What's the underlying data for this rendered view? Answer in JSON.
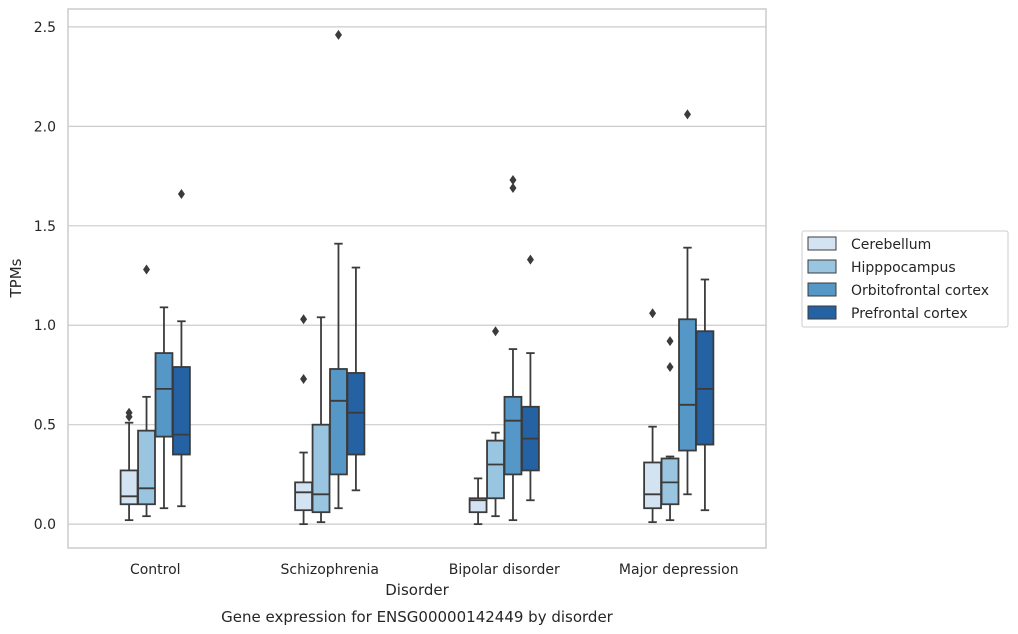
{
  "chart_data": {
    "type": "box",
    "caption": "Gene expression for ENSG00000142449 by disorder",
    "xlabel": "Disorder",
    "ylabel": "TPMs",
    "ylim": [
      -0.12,
      2.59
    ],
    "yticks": [
      0.0,
      0.5,
      1.0,
      1.5,
      2.0,
      2.5
    ],
    "ytick_labels": [
      "0.0",
      "0.5",
      "1.0",
      "1.5",
      "2.0",
      "2.5"
    ],
    "grid": "horizontal",
    "legend_position": "right",
    "categories": [
      "Control",
      "Schizophrenia",
      "Bipolar disorder",
      "Major depression"
    ],
    "series": [
      {
        "name": "Cerebellum",
        "color": "#d4e3f2",
        "boxes": [
          {
            "whislo": 0.02,
            "q1": 0.1,
            "med": 0.14,
            "q3": 0.27,
            "whishi": 0.51,
            "fliers": [
              0.54,
              0.56
            ]
          },
          {
            "whislo": 0.0,
            "q1": 0.07,
            "med": 0.16,
            "q3": 0.21,
            "whishi": 0.36,
            "fliers": [
              0.73,
              1.03
            ]
          },
          {
            "whislo": 0.0,
            "q1": 0.06,
            "med": 0.12,
            "q3": 0.13,
            "whishi": 0.23,
            "fliers": []
          },
          {
            "whislo": 0.01,
            "q1": 0.08,
            "med": 0.15,
            "q3": 0.31,
            "whishi": 0.49,
            "fliers": [
              1.06
            ]
          }
        ]
      },
      {
        "name": "Hipppocampus",
        "color": "#9ac5e0",
        "boxes": [
          {
            "whislo": 0.04,
            "q1": 0.1,
            "med": 0.18,
            "q3": 0.47,
            "whishi": 0.64,
            "fliers": [
              1.28
            ]
          },
          {
            "whislo": 0.01,
            "q1": 0.06,
            "med": 0.15,
            "q3": 0.5,
            "whishi": 1.04,
            "fliers": []
          },
          {
            "whislo": 0.04,
            "q1": 0.13,
            "med": 0.3,
            "q3": 0.42,
            "whishi": 0.46,
            "fliers": [
              0.97
            ]
          },
          {
            "whislo": 0.02,
            "q1": 0.1,
            "med": 0.21,
            "q3": 0.33,
            "whishi": 0.34,
            "fliers": [
              0.79,
              0.92
            ]
          }
        ]
      },
      {
        "name": "Orbitofrontal cortex",
        "color": "#5597c6",
        "boxes": [
          {
            "whislo": 0.08,
            "q1": 0.44,
            "med": 0.68,
            "q3": 0.86,
            "whishi": 1.09,
            "fliers": []
          },
          {
            "whislo": 0.08,
            "q1": 0.25,
            "med": 0.62,
            "q3": 0.78,
            "whishi": 1.41,
            "fliers": [
              2.46
            ]
          },
          {
            "whislo": 0.02,
            "q1": 0.25,
            "med": 0.52,
            "q3": 0.64,
            "whishi": 0.88,
            "fliers": [
              1.69,
              1.73
            ]
          },
          {
            "whislo": 0.15,
            "q1": 0.37,
            "med": 0.6,
            "q3": 1.03,
            "whishi": 1.39,
            "fliers": [
              2.06
            ]
          }
        ]
      },
      {
        "name": "Prefrontal cortex",
        "color": "#2462a4",
        "boxes": [
          {
            "whislo": 0.09,
            "q1": 0.35,
            "med": 0.45,
            "q3": 0.79,
            "whishi": 1.02,
            "fliers": [
              1.66
            ]
          },
          {
            "whislo": 0.17,
            "q1": 0.35,
            "med": 0.56,
            "q3": 0.76,
            "whishi": 1.29,
            "fliers": []
          },
          {
            "whislo": 0.12,
            "q1": 0.27,
            "med": 0.43,
            "q3": 0.59,
            "whishi": 0.86,
            "fliers": [
              1.33
            ]
          },
          {
            "whislo": 0.07,
            "q1": 0.4,
            "med": 0.68,
            "q3": 0.97,
            "whishi": 1.23,
            "fliers": []
          }
        ]
      }
    ]
  }
}
